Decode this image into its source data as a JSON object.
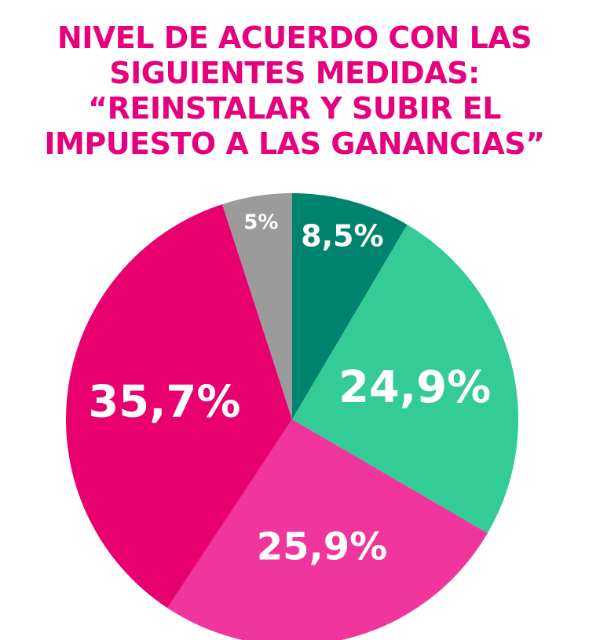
{
  "title_lines": [
    "NIVEL DE ACUERDO CON LAS",
    "SIGUIENTES MEDIDAS:",
    "“REINSTALAR Y SUBIR EL",
    "IMPUESTO A LAS GANANCIAS”"
  ],
  "colors": {
    "title": "#E6007E",
    "label": "#FFFFFF"
  },
  "chart_data": {
    "type": "pie",
    "start_angle_deg": 0,
    "direction": "clockwise",
    "slices": [
      {
        "value": 8.5,
        "label": "8,5%",
        "color": "#00836E"
      },
      {
        "value": 24.9,
        "label": "24,9%",
        "color": "#33CC96"
      },
      {
        "value": 25.9,
        "label": "25,9%",
        "color": "#F0369C"
      },
      {
        "value": 35.7,
        "label": "35,7%",
        "color": "#E8006F"
      },
      {
        "value": 5,
        "label": "5%",
        "color": "#9B9B9B"
      }
    ]
  }
}
